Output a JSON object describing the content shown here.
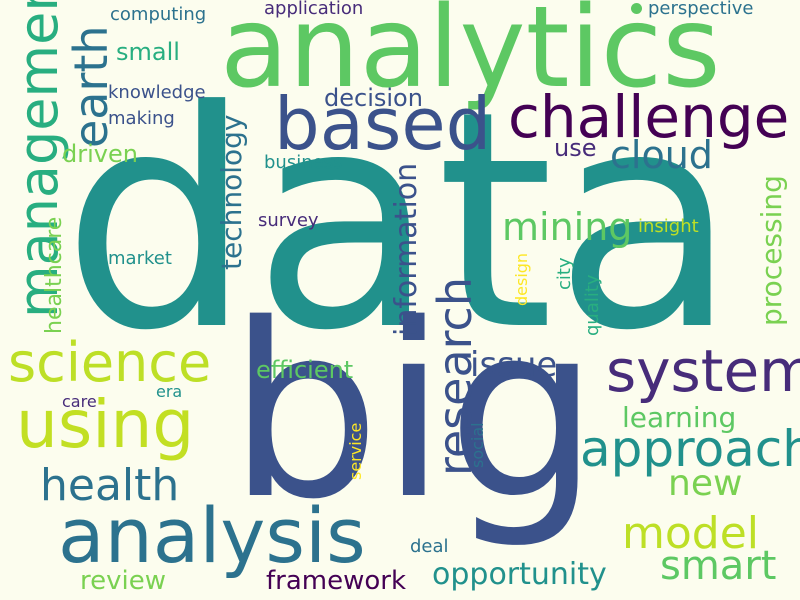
{
  "colors": {
    "background": "#fcfdee",
    "teal": "#21918c",
    "blue": "#3b528b",
    "purple": "#472c7a",
    "dark_purple": "#440154",
    "green": "#5dc863",
    "light_green": "#7ad151",
    "yellow_green": "#bddf26",
    "yellow": "#fde725",
    "mid_teal": "#2c728e",
    "sea": "#28ae80"
  },
  "words": [
    "data",
    "big",
    "analytics",
    "analysis",
    "based",
    "challenge",
    "system",
    "using",
    "science",
    "management",
    "research",
    "approach",
    "earth",
    "health",
    "model",
    "cloud",
    "mining",
    "smart",
    "information",
    "opportunity",
    "new",
    "issue",
    "technology",
    "processing",
    "framework",
    "review",
    "learning",
    "decision",
    "efficient",
    "healthcare",
    "small",
    "driven",
    "use",
    "knowledge",
    "making",
    "computing",
    "application",
    "perspective",
    "business",
    "survey",
    "market",
    "insight",
    "city",
    "quality",
    "design",
    "deal",
    "social",
    "service",
    "care",
    "era"
  ]
}
